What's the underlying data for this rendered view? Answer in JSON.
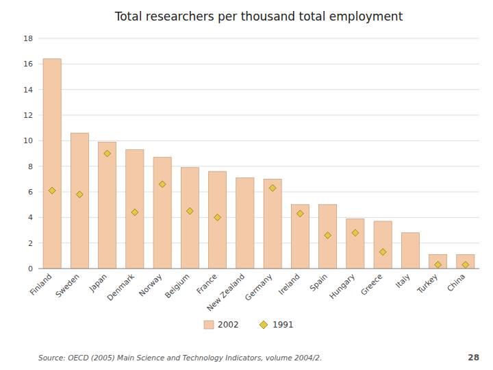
{
  "chart_data": {
    "type": "bar",
    "title": "Total researchers per thousand total employment",
    "categories": [
      "Finland",
      "Sweden",
      "Japan",
      "Denmark",
      "Norway",
      "Belgium",
      "France",
      "New Zealand",
      "Germany",
      "Ireland",
      "Spain",
      "Hungary",
      "Greece",
      "Italy",
      "Turkey",
      "China"
    ],
    "series": [
      {
        "name": "2002",
        "type": "bar",
        "color": "#F4C9A8",
        "values": [
          16.4,
          10.6,
          9.9,
          9.3,
          8.7,
          7.9,
          7.6,
          7.1,
          7.0,
          5.0,
          5.0,
          3.9,
          3.7,
          2.8,
          1.1,
          1.1
        ]
      },
      {
        "name": "1991",
        "type": "scatter",
        "marker": "diamond",
        "color": "#E8C840",
        "values": [
          6.1,
          5.8,
          9.0,
          4.4,
          6.6,
          4.5,
          4.0,
          null,
          6.3,
          4.3,
          2.6,
          2.8,
          1.3,
          null,
          0.3,
          0.3
        ]
      }
    ],
    "ylim": [
      0,
      18
    ],
    "yticks": [
      0,
      2,
      4,
      6,
      8,
      10,
      12,
      14,
      16,
      18
    ],
    "grid": true,
    "legend": "bottom",
    "annotations": [
      "Source: OECD (2005)  Main Science and Technology Indicators, volume 2004/2.",
      "28"
    ]
  }
}
